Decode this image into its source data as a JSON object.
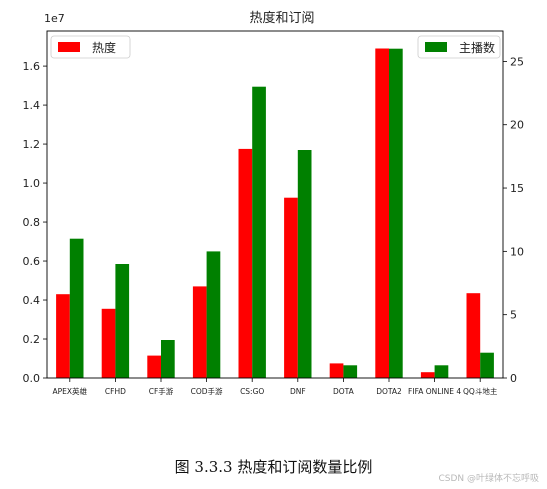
{
  "chart_data": {
    "type": "bar",
    "title": "热度和订阅",
    "categories": [
      "APEX英雄",
      "CFHD",
      "CF手游",
      "COD手游",
      "CS:GO",
      "DNF",
      "DOTA",
      "DOTA2",
      "FIFA ONLINE 4",
      "QQ斗地主"
    ],
    "left_axis": {
      "label": "",
      "exponent_label": "1e7",
      "ylim": [
        0,
        1.78
      ],
      "ticks": [
        "0.0",
        "0.2",
        "0.4",
        "0.6",
        "0.8",
        "1.0",
        "1.2",
        "1.4",
        "1.6"
      ]
    },
    "right_axis": {
      "label": "",
      "ylim": [
        0,
        27.4
      ],
      "ticks": [
        "0",
        "5",
        "10",
        "15",
        "20",
        "25"
      ]
    },
    "series": [
      {
        "name": "热度",
        "axis": "left",
        "color": "#ff0000",
        "values": [
          0.43,
          0.355,
          0.115,
          0.47,
          1.175,
          0.925,
          0.075,
          1.69,
          0.03,
          0.435
        ]
      },
      {
        "name": "主播数",
        "axis": "right",
        "color": "#008000",
        "values": [
          11,
          9,
          3,
          10,
          23,
          18,
          1,
          26,
          1,
          2
        ]
      }
    ],
    "legend": {
      "left_entry": "热度",
      "right_entry": "主播数",
      "left_position": "upper-left",
      "right_position": "upper-right"
    },
    "grid": false
  },
  "caption": "图 3.3.3  热度和订阅数量比例",
  "watermark": "CSDN @叶绿体不忘呼吸"
}
